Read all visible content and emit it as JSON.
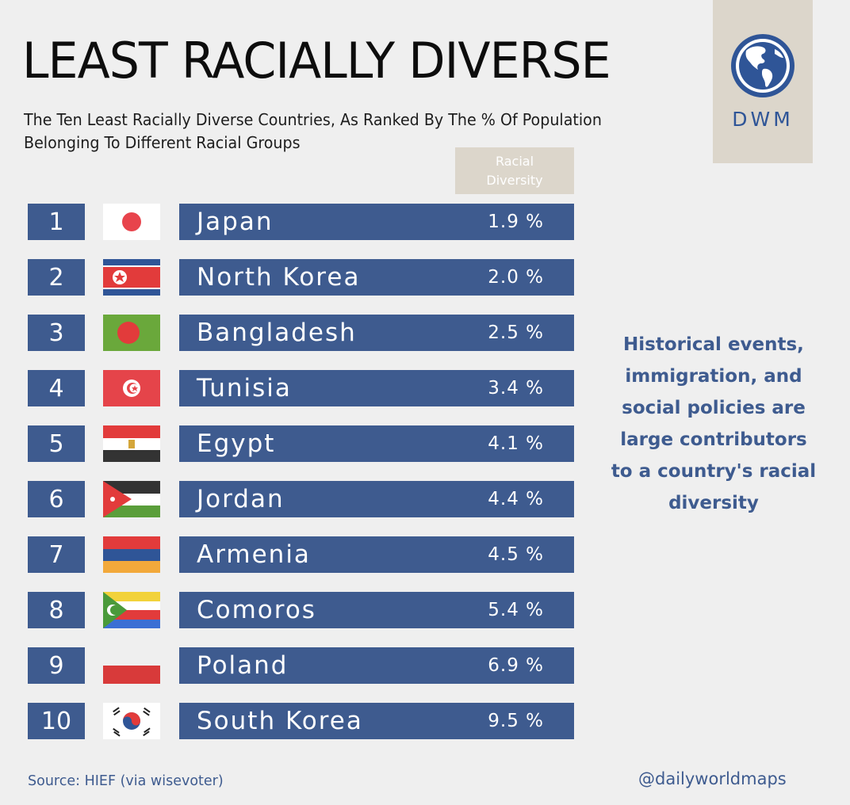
{
  "header": {
    "title": "LEAST RACIALLY DIVERSE",
    "subtitle": "The Ten Least Racially Diverse Countries, As Ranked By The % Of Population Belonging To Different Racial Groups"
  },
  "logo": {
    "text": "DWM",
    "icon": "globe-icon"
  },
  "chart_data": {
    "type": "table",
    "column_header": "Racial Diversity",
    "unit": "%",
    "rows": [
      {
        "rank": "1",
        "country": "Japan",
        "value": 1.9,
        "value_text": "1.9 %",
        "flag": "japan-flag-icon"
      },
      {
        "rank": "2",
        "country": "North Korea",
        "value": 2.0,
        "value_text": "2.0 %",
        "flag": "north-korea-flag-icon"
      },
      {
        "rank": "3",
        "country": "Bangladesh",
        "value": 2.5,
        "value_text": "2.5 %",
        "flag": "bangladesh-flag-icon"
      },
      {
        "rank": "4",
        "country": "Tunisia",
        "value": 3.4,
        "value_text": "3.4 %",
        "flag": "tunisia-flag-icon"
      },
      {
        "rank": "5",
        "country": "Egypt",
        "value": 4.1,
        "value_text": "4.1 %",
        "flag": "egypt-flag-icon"
      },
      {
        "rank": "6",
        "country": "Jordan",
        "value": 4.4,
        "value_text": "4.4 %",
        "flag": "jordan-flag-icon"
      },
      {
        "rank": "7",
        "country": "Armenia",
        "value": 4.5,
        "value_text": "4.5 %",
        "flag": "armenia-flag-icon"
      },
      {
        "rank": "8",
        "country": "Comoros",
        "value": 5.4,
        "value_text": "5.4 %",
        "flag": "comoros-flag-icon"
      },
      {
        "rank": "9",
        "country": "Poland",
        "value": 6.9,
        "value_text": "6.9 %",
        "flag": "poland-flag-icon"
      },
      {
        "rank": "10",
        "country": "South Korea",
        "value": 9.5,
        "value_text": "9.5 %",
        "flag": "south-korea-flag-icon"
      }
    ]
  },
  "note": "Historical events, immigration, and social policies are large contributors to a country's racial diversity",
  "footer": {
    "source": "Source: HIEF (via wisevoter)",
    "handle": "@dailyworldmaps"
  },
  "colors": {
    "bar": "#3e5b8f",
    "accent_text": "#3e5b8f",
    "logo_bg": "#dcd6cb",
    "background": "#efefef"
  }
}
